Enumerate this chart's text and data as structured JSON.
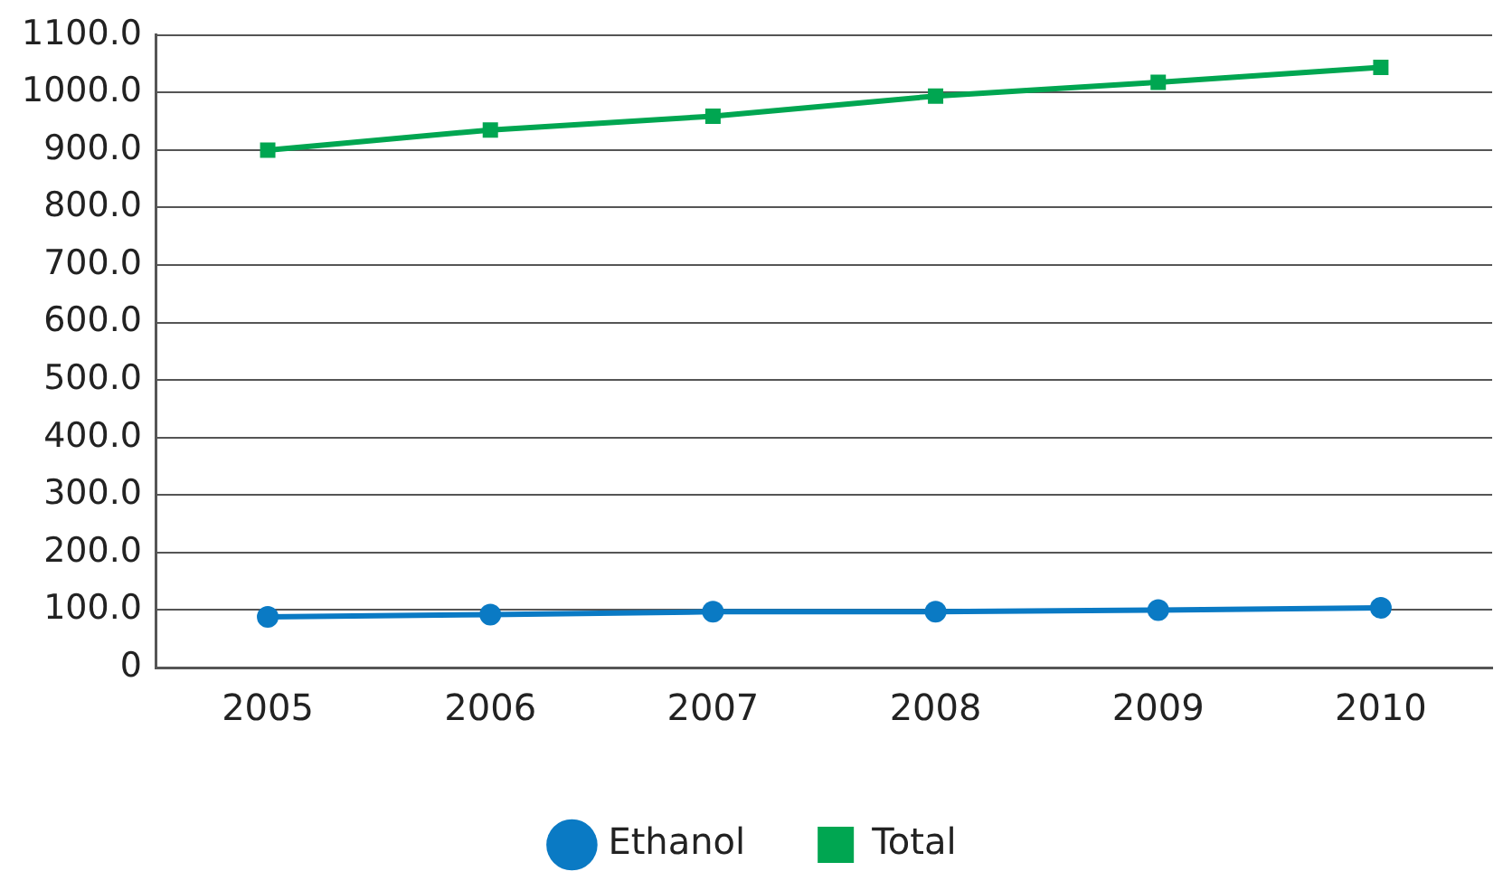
{
  "chart_data": {
    "type": "line",
    "categories": [
      "2005",
      "2006",
      "2007",
      "2008",
      "2009",
      "2010"
    ],
    "series": [
      {
        "name": "Ethanol",
        "color": "#0a7ac4",
        "values": [
          88,
          92,
          97,
          97,
          100,
          104
        ],
        "marker": "circle"
      },
      {
        "name": "Total",
        "color": "#00a651",
        "values": [
          900,
          935,
          959,
          994,
          1018,
          1044
        ],
        "marker": "square"
      }
    ],
    "ylim": [
      0,
      1100
    ],
    "yticks": [
      0,
      {
        "value": 100,
        "label": "100.0"
      },
      {
        "value": 200,
        "label": "200.0"
      },
      {
        "value": 300,
        "label": "300.0"
      },
      {
        "value": 400,
        "label": "400.0"
      },
      {
        "value": 500,
        "label": "500.0"
      },
      {
        "value": 600,
        "label": "600.0"
      },
      {
        "value": 700,
        "label": "700.0"
      },
      {
        "value": 800,
        "label": "800.0"
      },
      {
        "value": 900,
        "label": "900.0"
      },
      {
        "value": 1000,
        "label": "1000.0"
      },
      {
        "value": 1100,
        "label": "1100.0"
      }
    ],
    "grid": "y",
    "legend": "bottom"
  }
}
